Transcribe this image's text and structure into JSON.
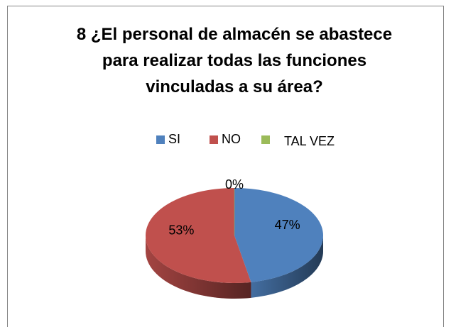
{
  "chart_data": {
    "type": "pie3d",
    "title": "8 ¿El personal de almacén se abastece para realizar todas las funciones vinculadas a su área?",
    "categories": [
      "SI",
      "NO",
      "TAL VEZ"
    ],
    "values": [
      47,
      53,
      0
    ],
    "value_labels": [
      "47%",
      "53%",
      "0%"
    ],
    "colors": [
      "#4f81bd",
      "#c0504d",
      "#9bbb59"
    ],
    "legend": "top"
  }
}
